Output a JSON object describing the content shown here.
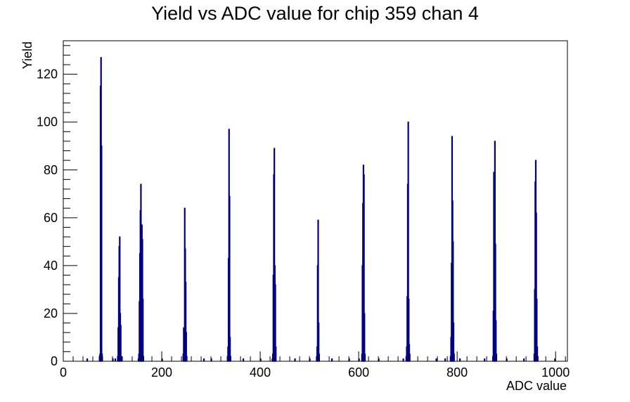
{
  "chart_data": {
    "type": "histogram",
    "title": "Yield vs ADC value for chip 359 chan 4",
    "xlabel": "ADC value",
    "ylabel": "Yield",
    "xlim": [
      0,
      1024
    ],
    "ylim": [
      0,
      134
    ],
    "x_ticks": [
      0,
      200,
      400,
      600,
      800,
      1000
    ],
    "y_ticks": [
      0,
      20,
      40,
      60,
      80,
      100,
      120
    ],
    "bin_width": 1,
    "grid": false,
    "legend": "none",
    "series_color": "#000080",
    "bins": [
      {
        "x": 48,
        "y": 1
      },
      {
        "x": 73,
        "y": 2
      },
      {
        "x": 74,
        "y": 3
      },
      {
        "x": 75,
        "y": 115
      },
      {
        "x": 76,
        "y": 127
      },
      {
        "x": 77,
        "y": 90
      },
      {
        "x": 78,
        "y": 3
      },
      {
        "x": 100,
        "y": 1
      },
      {
        "x": 105,
        "y": 1
      },
      {
        "x": 110,
        "y": 2
      },
      {
        "x": 111,
        "y": 14
      },
      {
        "x": 112,
        "y": 35
      },
      {
        "x": 113,
        "y": 48
      },
      {
        "x": 114,
        "y": 52
      },
      {
        "x": 115,
        "y": 20
      },
      {
        "x": 116,
        "y": 15
      },
      {
        "x": 117,
        "y": 2
      },
      {
        "x": 152,
        "y": 1
      },
      {
        "x": 153,
        "y": 3
      },
      {
        "x": 154,
        "y": 25
      },
      {
        "x": 155,
        "y": 45
      },
      {
        "x": 156,
        "y": 63
      },
      {
        "x": 157,
        "y": 74
      },
      {
        "x": 158,
        "y": 55
      },
      {
        "x": 159,
        "y": 57
      },
      {
        "x": 160,
        "y": 51
      },
      {
        "x": 161,
        "y": 26
      },
      {
        "x": 162,
        "y": 2
      },
      {
        "x": 200,
        "y": 1
      },
      {
        "x": 243,
        "y": 3
      },
      {
        "x": 244,
        "y": 14
      },
      {
        "x": 245,
        "y": 12
      },
      {
        "x": 246,
        "y": 64
      },
      {
        "x": 247,
        "y": 47
      },
      {
        "x": 248,
        "y": 33
      },
      {
        "x": 249,
        "y": 12
      },
      {
        "x": 250,
        "y": 2
      },
      {
        "x": 285,
        "y": 1
      },
      {
        "x": 300,
        "y": 1
      },
      {
        "x": 333,
        "y": 2
      },
      {
        "x": 334,
        "y": 6
      },
      {
        "x": 335,
        "y": 43
      },
      {
        "x": 336,
        "y": 97
      },
      {
        "x": 337,
        "y": 69
      },
      {
        "x": 338,
        "y": 10
      },
      {
        "x": 339,
        "y": 2
      },
      {
        "x": 365,
        "y": 1
      },
      {
        "x": 400,
        "y": 1
      },
      {
        "x": 424,
        "y": 1
      },
      {
        "x": 425,
        "y": 3
      },
      {
        "x": 426,
        "y": 36
      },
      {
        "x": 427,
        "y": 78
      },
      {
        "x": 428,
        "y": 89
      },
      {
        "x": 429,
        "y": 40
      },
      {
        "x": 430,
        "y": 32
      },
      {
        "x": 431,
        "y": 6
      },
      {
        "x": 470,
        "y": 1
      },
      {
        "x": 500,
        "y": 1
      },
      {
        "x": 514,
        "y": 2
      },
      {
        "x": 515,
        "y": 6
      },
      {
        "x": 516,
        "y": 40
      },
      {
        "x": 517,
        "y": 59
      },
      {
        "x": 518,
        "y": 16
      },
      {
        "x": 519,
        "y": 3
      },
      {
        "x": 545,
        "y": 1
      },
      {
        "x": 580,
        "y": 1
      },
      {
        "x": 600,
        "y": 1
      },
      {
        "x": 606,
        "y": 3
      },
      {
        "x": 607,
        "y": 40
      },
      {
        "x": 608,
        "y": 66
      },
      {
        "x": 609,
        "y": 82
      },
      {
        "x": 610,
        "y": 78
      },
      {
        "x": 611,
        "y": 20
      },
      {
        "x": 612,
        "y": 3
      },
      {
        "x": 640,
        "y": 1
      },
      {
        "x": 690,
        "y": 1
      },
      {
        "x": 696,
        "y": 2
      },
      {
        "x": 697,
        "y": 6
      },
      {
        "x": 698,
        "y": 27
      },
      {
        "x": 699,
        "y": 74
      },
      {
        "x": 700,
        "y": 100
      },
      {
        "x": 701,
        "y": 26
      },
      {
        "x": 702,
        "y": 7
      },
      {
        "x": 703,
        "y": 3
      },
      {
        "x": 757,
        "y": 1
      },
      {
        "x": 775,
        "y": 1
      },
      {
        "x": 786,
        "y": 2
      },
      {
        "x": 787,
        "y": 10
      },
      {
        "x": 788,
        "y": 41
      },
      {
        "x": 789,
        "y": 94
      },
      {
        "x": 790,
        "y": 67
      },
      {
        "x": 791,
        "y": 50
      },
      {
        "x": 792,
        "y": 16
      },
      {
        "x": 793,
        "y": 3
      },
      {
        "x": 805,
        "y": 1
      },
      {
        "x": 855,
        "y": 1
      },
      {
        "x": 872,
        "y": 2
      },
      {
        "x": 873,
        "y": 21
      },
      {
        "x": 874,
        "y": 79
      },
      {
        "x": 875,
        "y": 47
      },
      {
        "x": 876,
        "y": 92
      },
      {
        "x": 877,
        "y": 49
      },
      {
        "x": 878,
        "y": 17
      },
      {
        "x": 879,
        "y": 3
      },
      {
        "x": 900,
        "y": 1
      },
      {
        "x": 935,
        "y": 1
      },
      {
        "x": 956,
        "y": 3
      },
      {
        "x": 957,
        "y": 30
      },
      {
        "x": 958,
        "y": 75
      },
      {
        "x": 959,
        "y": 84
      },
      {
        "x": 960,
        "y": 62
      },
      {
        "x": 961,
        "y": 26
      },
      {
        "x": 962,
        "y": 6
      },
      {
        "x": 963,
        "y": 2
      },
      {
        "x": 998,
        "y": 1
      }
    ]
  }
}
